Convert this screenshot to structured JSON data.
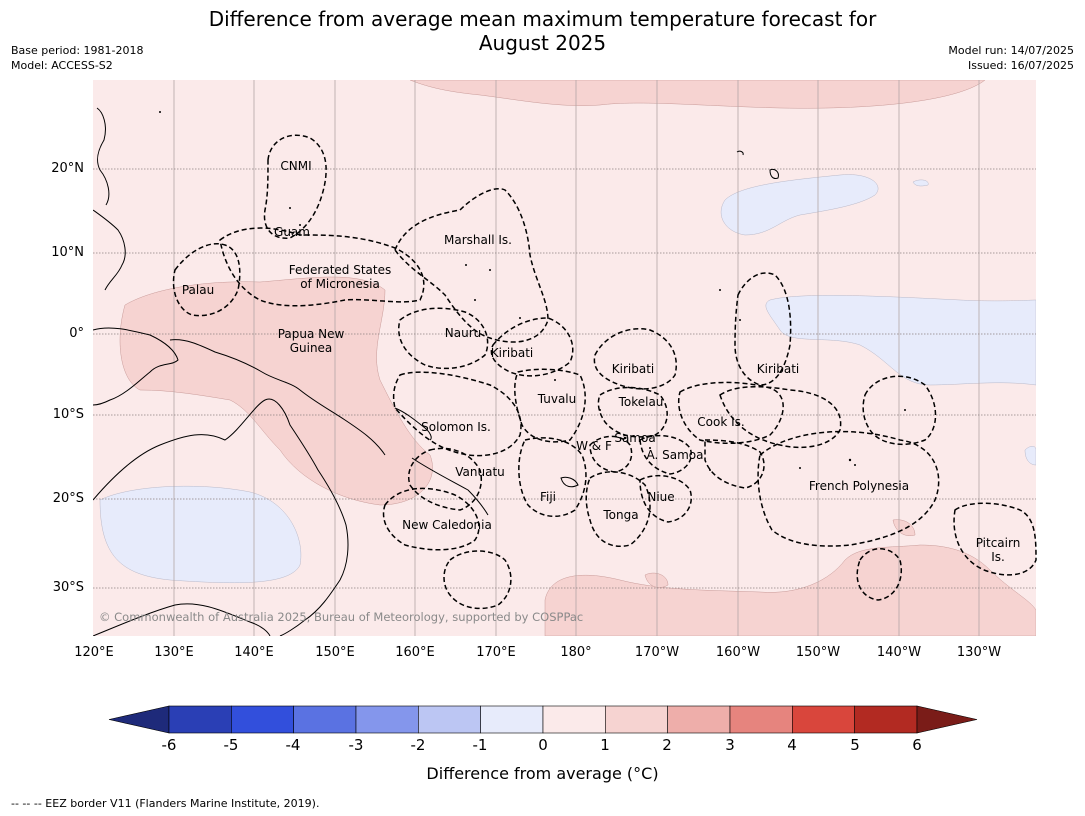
{
  "title": {
    "line1": "Difference from average mean maximum temperature forecast for",
    "line2": "August 2025"
  },
  "meta_left": {
    "base_period": "Base period: 1981-2018",
    "model": "Model: ACCESS-S2"
  },
  "meta_right": {
    "model_run": "Model run: 14/07/2025",
    "issued": "Issued: 16/07/2025"
  },
  "lat_labels": [
    "20°N",
    "10°N",
    "0°",
    "10°S",
    "20°S",
    "30°S"
  ],
  "lon_labels": [
    "120°E",
    "130°E",
    "140°E",
    "150°E",
    "160°E",
    "170°E",
    "180°",
    "170°W",
    "160°W",
    "150°W",
    "140°W",
    "130°W"
  ],
  "regions": [
    {
      "name": "cnmi",
      "text": "CNMI"
    },
    {
      "name": "guam",
      "text": "Guam"
    },
    {
      "name": "palau",
      "text": "Palau"
    },
    {
      "name": "fsm",
      "text": "Federated States\nof Micronesia"
    },
    {
      "name": "marshall",
      "text": "Marshall Is."
    },
    {
      "name": "png",
      "text": "Papua New\nGuinea"
    },
    {
      "name": "nauru",
      "text": "Nauru"
    },
    {
      "name": "kiribati-west",
      "text": "Kiribati"
    },
    {
      "name": "kiribati-central",
      "text": "Kiribati"
    },
    {
      "name": "kiribati-east",
      "text": "Kiribati"
    },
    {
      "name": "tuvalu",
      "text": "Tuvalu"
    },
    {
      "name": "tokelau",
      "text": "Tokelau"
    },
    {
      "name": "solomon",
      "text": "Solomon Is."
    },
    {
      "name": "samoa",
      "text": "Samoa"
    },
    {
      "name": "wallis-futuna",
      "text": "W & F"
    },
    {
      "name": "american-samoa",
      "text": "A. Samoa"
    },
    {
      "name": "cook",
      "text": "Cook Is."
    },
    {
      "name": "vanuatu",
      "text": "Vanuatu"
    },
    {
      "name": "fiji",
      "text": "Fiji"
    },
    {
      "name": "niue",
      "text": "Niue"
    },
    {
      "name": "tonga",
      "text": "Tonga"
    },
    {
      "name": "new-caledonia",
      "text": "New Caledonia"
    },
    {
      "name": "french-polynesia",
      "text": "French Polynesia"
    },
    {
      "name": "pitcairn",
      "text": "Pitcairn\nIs."
    }
  ],
  "copyright": "© Commonwealth of Australia 2025, Bureau of Meteorology, supported by COSPPac",
  "colorbar": {
    "ticks": [
      "-6",
      "-5",
      "-4",
      "-3",
      "-2",
      "-1",
      "0",
      "1",
      "2",
      "3",
      "4",
      "5",
      "6"
    ],
    "colors": [
      "#1e2a7a",
      "#2a3fb5",
      "#324fdc",
      "#5a72e2",
      "#8496ec",
      "#bcc6f3",
      "#e7ebfb",
      "#fbeaea",
      "#f6d3d1",
      "#eeaeaa",
      "#e6847e",
      "#d9463c",
      "#b22a22",
      "#7a1c18"
    ],
    "label": "Difference from average (°C)"
  },
  "footnote": "--  --  -- EEZ border V11 (Flanders Marine Institute, 2019)."
}
